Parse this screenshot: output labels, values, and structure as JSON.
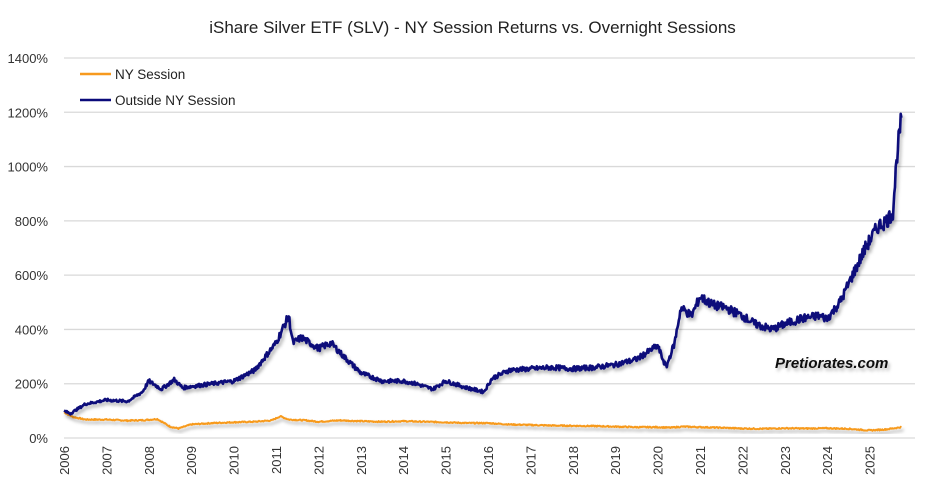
{
  "chart_data": {
    "type": "line",
    "title": "iShare Silver ETF (SLV) - NY Session Returns vs. Overnight Sessions",
    "xlabel": "",
    "ylabel": "",
    "xlim": [
      2006,
      2025.8
    ],
    "ylim": [
      0,
      1400
    ],
    "y_ticks": [
      0,
      200,
      400,
      600,
      800,
      1000,
      1200,
      1400
    ],
    "y_tick_labels": [
      "0%",
      "200%",
      "400%",
      "600%",
      "800%",
      "1000%",
      "1200%",
      "1400%"
    ],
    "x_tick_labels": [
      "2006",
      "2007",
      "2008",
      "2009",
      "2010",
      "2011",
      "2012",
      "2013",
      "2014",
      "2015",
      "2016",
      "2017",
      "2018",
      "2019",
      "2020",
      "2021",
      "2022",
      "2023",
      "2024",
      "2025"
    ],
    "grid": true,
    "legend": "top-left",
    "annotation": "Pretiorates.com",
    "series": [
      {
        "name": "NY Session",
        "color": "#F79A1E",
        "x": [
          2006.0,
          2006.2,
          2006.5,
          2007.0,
          2007.5,
          2007.9,
          2008.2,
          2008.5,
          2008.7,
          2009.0,
          2009.5,
          2010.0,
          2010.5,
          2010.9,
          2011.1,
          2011.3,
          2011.7,
          2012.0,
          2012.5,
          2013.0,
          2013.5,
          2014.0,
          2014.5,
          2015.0,
          2015.5,
          2016.0,
          2016.5,
          2017.0,
          2017.5,
          2018.0,
          2018.5,
          2019.0,
          2019.5,
          2020.0,
          2020.3,
          2020.6,
          2021.0,
          2021.5,
          2022.0,
          2022.5,
          2023.0,
          2023.5,
          2024.0,
          2024.5,
          2025.0,
          2025.4,
          2025.75
        ],
        "values": [
          95,
          78,
          68,
          68,
          64,
          66,
          70,
          42,
          35,
          50,
          55,
          58,
          60,
          65,
          80,
          68,
          65,
          60,
          65,
          62,
          60,
          62,
          60,
          58,
          55,
          55,
          50,
          48,
          46,
          45,
          44,
          42,
          40,
          40,
          38,
          42,
          40,
          38,
          35,
          34,
          36,
          35,
          36,
          34,
          28,
          32,
          40
        ]
      },
      {
        "name": "Outside NY Session",
        "color": "#0A0A7A",
        "x": [
          2006.0,
          2006.15,
          2006.5,
          2007.0,
          2007.5,
          2007.85,
          2008.0,
          2008.3,
          2008.6,
          2008.8,
          2009.0,
          2009.5,
          2010.0,
          2010.5,
          2010.8,
          2011.0,
          2011.15,
          2011.3,
          2011.4,
          2011.6,
          2012.0,
          2012.3,
          2012.6,
          2013.0,
          2013.5,
          2014.0,
          2014.3,
          2014.7,
          2015.0,
          2015.5,
          2015.9,
          2016.1,
          2016.5,
          2017.0,
          2017.5,
          2018.0,
          2018.5,
          2019.0,
          2019.5,
          2019.8,
          2020.0,
          2020.2,
          2020.4,
          2020.55,
          2020.8,
          2021.0,
          2021.3,
          2021.6,
          2022.0,
          2022.3,
          2022.7,
          2023.0,
          2023.4,
          2023.8,
          2024.0,
          2024.3,
          2024.6,
          2024.9,
          2025.2,
          2025.4,
          2025.55,
          2025.65,
          2025.75
        ],
        "values": [
          100,
          90,
          125,
          140,
          135,
          170,
          210,
          180,
          215,
          185,
          190,
          200,
          210,
          250,
          310,
          350,
          400,
          450,
          350,
          370,
          330,
          350,
          300,
          240,
          210,
          210,
          200,
          180,
          210,
          185,
          170,
          220,
          250,
          255,
          260,
          255,
          260,
          270,
          290,
          320,
          340,
          260,
          350,
          480,
          450,
          520,
          490,
          480,
          450,
          420,
          400,
          420,
          440,
          450,
          440,
          500,
          600,
          700,
          780,
          800,
          830,
          1050,
          1180
        ]
      }
    ]
  }
}
